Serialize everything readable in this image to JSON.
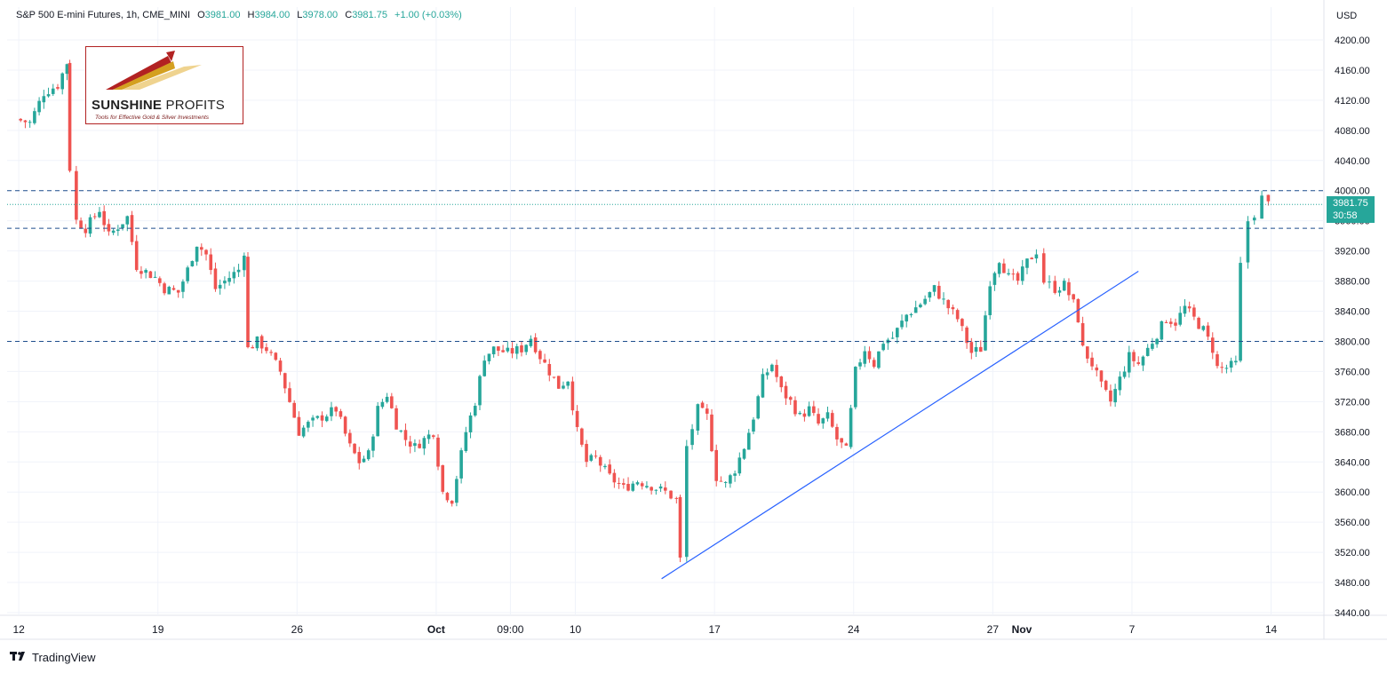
{
  "header": {
    "title": "S&P 500 E-mini Futures, 1h, CME_MINI",
    "o_label": "O",
    "o_value": "3981.00",
    "h_label": "H",
    "h_value": "3984.00",
    "l_label": "L",
    "l_value": "3978.00",
    "c_label": "C",
    "c_value": "3981.75",
    "change": "+1.00 (+0.03%)"
  },
  "logo": {
    "name_bold": "SUNSHINE",
    "name_rest": " PROFITS",
    "tagline": "Tools for Effective Gold & Silver Investments"
  },
  "price_badge": {
    "price": "3981.75",
    "countdown": "30:58"
  },
  "footer": {
    "brand": "TradingView",
    "icon": "tradingview-logo-icon"
  },
  "colors": {
    "up": "#26a69a",
    "down": "#ef5350",
    "trendline": "#2962ff",
    "hline": "#1e4d8c",
    "grid": "#f0f3fa",
    "text": "#131722"
  },
  "chart_data": {
    "type": "candlestick",
    "currency": "USD",
    "y_ticks": [
      4200,
      4160,
      4120,
      4080,
      4040,
      4000,
      3960,
      3920,
      3880,
      3840,
      3800,
      3760,
      3720,
      3680,
      3640,
      3600,
      3560,
      3520,
      3480,
      3440
    ],
    "y_tick_labels": [
      "4200.00",
      "4160.00",
      "4120.00",
      "4080.00",
      "4040.00",
      "4000.00",
      "3960.00",
      "3920.00",
      "3880.00",
      "3840.00",
      "3800.00",
      "3760.00",
      "3720.00",
      "3680.00",
      "3640.00",
      "3600.00",
      "3560.00",
      "3520.00",
      "3480.00",
      "3440.00"
    ],
    "ylim": [
      3420,
      4215
    ],
    "x_ticks": [
      "12",
      "19",
      "26",
      "Oct",
      "09:00",
      "10",
      "17",
      "24",
      "27",
      "Nov",
      "7",
      "14"
    ],
    "x_tick_positions": [
      0.3,
      15.3,
      30.3,
      45.3,
      53.3,
      60.3,
      75.3,
      90.3,
      105.3,
      105.3,
      120.3,
      135.3
    ],
    "x_tick_session": [
      0,
      15,
      30,
      45,
      53,
      60,
      75,
      90,
      105,
      108,
      120,
      135
    ],
    "horizontal_levels": [
      {
        "price": 4000,
        "style": "dashed"
      },
      {
        "price": 3950,
        "style": "dashed"
      },
      {
        "price": 3800,
        "style": "dashed"
      },
      {
        "price": 3981.75,
        "style": "dotted",
        "current": true
      }
    ],
    "trendline": {
      "from": {
        "session": 69.6,
        "price": 3485
      },
      "to": {
        "session": 121.0,
        "price": 3893
      }
    },
    "path": [
      [
        0,
        4095
      ],
      [
        1.5,
        4090
      ],
      [
        3,
        4130
      ],
      [
        4.5,
        4140
      ],
      [
        5.5,
        4170
      ],
      [
        5.8,
        4030
      ],
      [
        6.5,
        3960
      ],
      [
        7.5,
        3950
      ],
      [
        9,
        3975
      ],
      [
        10,
        3940
      ],
      [
        12,
        3965
      ],
      [
        13,
        3900
      ],
      [
        15,
        3885
      ],
      [
        16,
        3870
      ],
      [
        17.5,
        3865
      ],
      [
        18.5,
        3895
      ],
      [
        19.5,
        3930
      ],
      [
        20.5,
        3915
      ],
      [
        21.5,
        3870
      ],
      [
        22.5,
        3880
      ],
      [
        24,
        3895
      ],
      [
        24.6,
        3920
      ],
      [
        25,
        3790
      ],
      [
        26,
        3800
      ],
      [
        27,
        3790
      ],
      [
        28.5,
        3760
      ],
      [
        29.5,
        3720
      ],
      [
        30.5,
        3680
      ],
      [
        31.5,
        3690
      ],
      [
        33,
        3700
      ],
      [
        34.5,
        3710
      ],
      [
        36,
        3660
      ],
      [
        37,
        3640
      ],
      [
        38,
        3650
      ],
      [
        39,
        3710
      ],
      [
        40,
        3730
      ],
      [
        41,
        3690
      ],
      [
        42,
        3670
      ],
      [
        43,
        3660
      ],
      [
        44,
        3670
      ],
      [
        45,
        3680
      ],
      [
        46,
        3600
      ],
      [
        47,
        3590
      ],
      [
        48.5,
        3680
      ],
      [
        49.5,
        3720
      ],
      [
        50.5,
        3780
      ],
      [
        51.5,
        3790
      ],
      [
        53,
        3785
      ],
      [
        54.5,
        3790
      ],
      [
        55.5,
        3805
      ],
      [
        56.5,
        3780
      ],
      [
        57.5,
        3760
      ],
      [
        58.5,
        3740
      ],
      [
        59.5,
        3750
      ],
      [
        60.5,
        3680
      ],
      [
        61.5,
        3640
      ],
      [
        62.5,
        3645
      ],
      [
        64,
        3620
      ],
      [
        65.5,
        3605
      ],
      [
        67,
        3615
      ],
      [
        68.5,
        3608
      ],
      [
        70,
        3600
      ],
      [
        71.2,
        3590
      ],
      [
        71.6,
        3510
      ],
      [
        72.3,
        3660
      ],
      [
        73.5,
        3710
      ],
      [
        74.5,
        3700
      ],
      [
        75.5,
        3620
      ],
      [
        76.5,
        3610
      ],
      [
        77.5,
        3630
      ],
      [
        78.5,
        3660
      ],
      [
        79.5,
        3700
      ],
      [
        80.5,
        3750
      ],
      [
        81.5,
        3770
      ],
      [
        82.5,
        3735
      ],
      [
        83.5,
        3720
      ],
      [
        84.5,
        3700
      ],
      [
        85.5,
        3710
      ],
      [
        86.5,
        3690
      ],
      [
        87.5,
        3700
      ],
      [
        88.5,
        3670
      ],
      [
        89.5,
        3655
      ],
      [
        90.5,
        3760
      ],
      [
        91.5,
        3790
      ],
      [
        92.5,
        3770
      ],
      [
        93.5,
        3800
      ],
      [
        94.5,
        3805
      ],
      [
        96,
        3835
      ],
      [
        97.5,
        3850
      ],
      [
        99,
        3870
      ],
      [
        100.5,
        3845
      ],
      [
        101.5,
        3830
      ],
      [
        102.5,
        3800
      ],
      [
        103,
        3785
      ],
      [
        104,
        3790
      ],
      [
        105,
        3880
      ],
      [
        106,
        3910
      ],
      [
        107,
        3885
      ],
      [
        108,
        3880
      ],
      [
        109,
        3905
      ],
      [
        110,
        3920
      ],
      [
        110.8,
        3880
      ],
      [
        112,
        3870
      ],
      [
        113,
        3875
      ],
      [
        114,
        3850
      ],
      [
        114.5,
        3830
      ],
      [
        115,
        3790
      ],
      [
        116,
        3770
      ],
      [
        117,
        3740
      ],
      [
        118,
        3720
      ],
      [
        119,
        3750
      ],
      [
        120,
        3780
      ],
      [
        121,
        3770
      ],
      [
        122,
        3790
      ],
      [
        123,
        3810
      ],
      [
        124,
        3830
      ],
      [
        125,
        3825
      ],
      [
        126,
        3845
      ],
      [
        127,
        3830
      ],
      [
        128,
        3815
      ],
      [
        129,
        3790
      ],
      [
        129.5,
        3765
      ],
      [
        130.5,
        3765
      ],
      [
        131.5,
        3770
      ],
      [
        132,
        3900
      ],
      [
        132.8,
        3960
      ],
      [
        133.5,
        3970
      ],
      [
        134.3,
        3990
      ],
      [
        135,
        3981.75
      ]
    ],
    "x_session_range": [
      0,
      142
    ]
  }
}
